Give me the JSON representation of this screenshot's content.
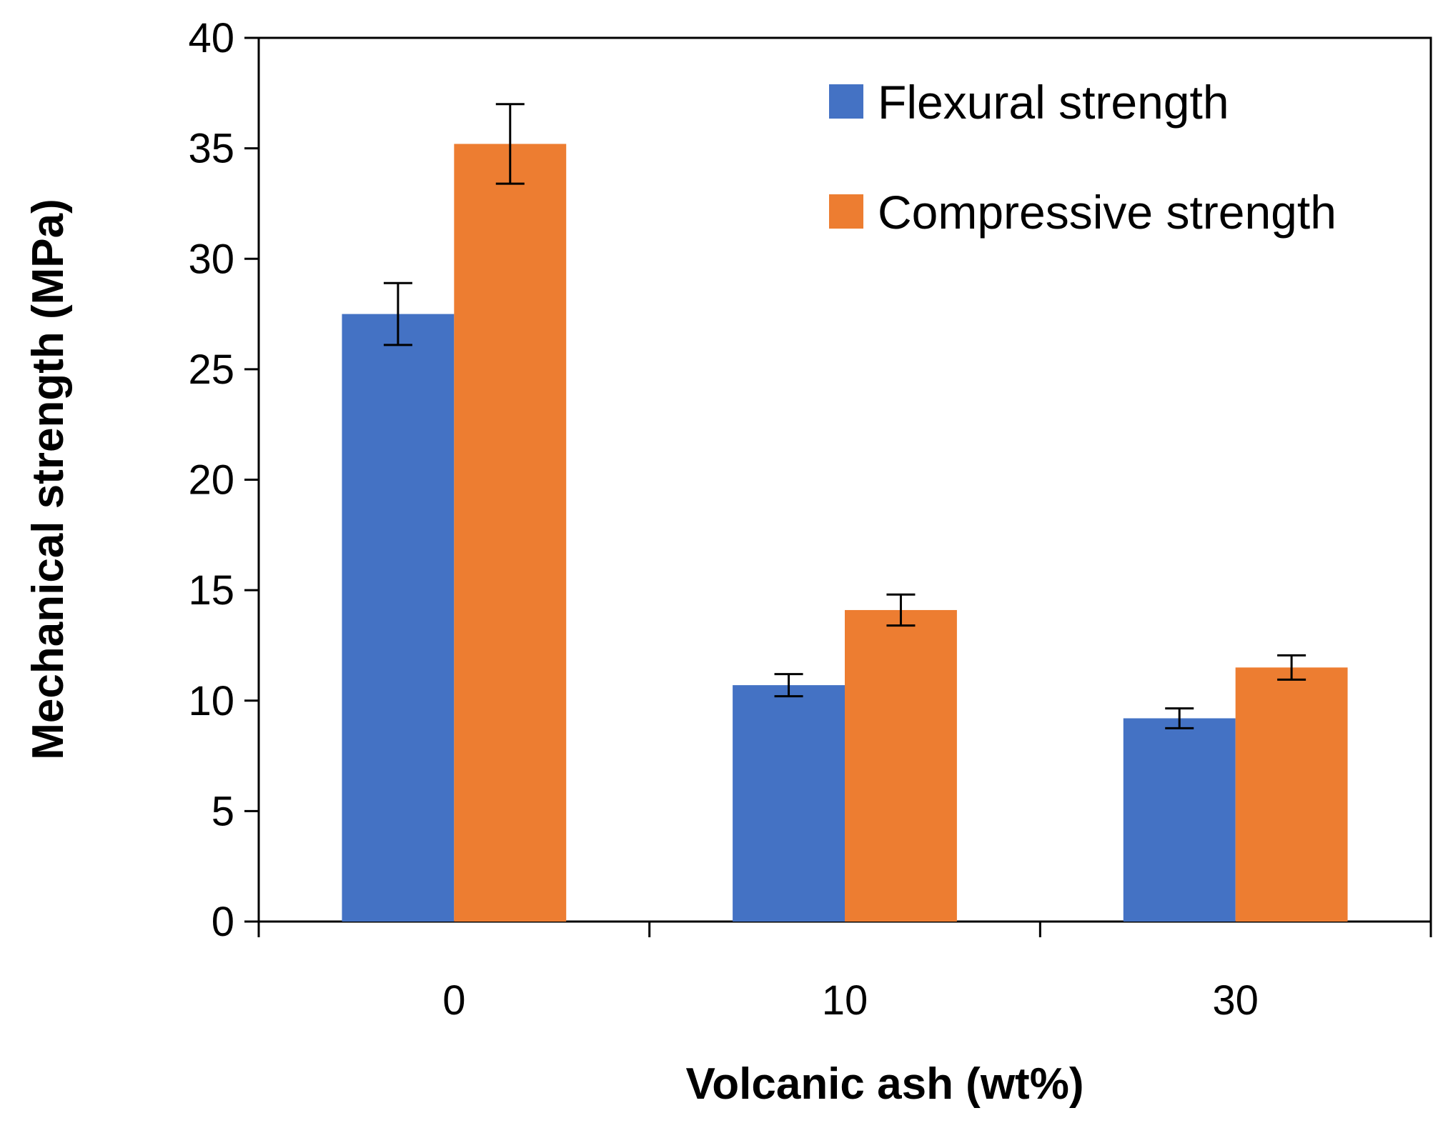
{
  "chart_data": {
    "type": "bar",
    "title": "",
    "xlabel": "Volcanic ash (wt%)",
    "ylabel": "Mechanical strength (MPa)",
    "ylim": [
      0,
      40
    ],
    "yticks": [
      "0",
      "5",
      "10",
      "15",
      "20",
      "25",
      "30",
      "35",
      "40"
    ],
    "categories": [
      "0",
      "10",
      "30"
    ],
    "series": [
      {
        "name": "Flexural strength",
        "color": "#4472C4",
        "values": [
          27.5,
          10.7,
          9.2
        ],
        "errors": [
          1.4,
          0.5,
          0.45
        ]
      },
      {
        "name": "Compressive strength",
        "color": "#ED7D31",
        "values": [
          35.2,
          14.1,
          11.5
        ],
        "errors": [
          1.8,
          0.7,
          0.55
        ]
      }
    ],
    "legend_position": "top-right",
    "grid": false
  }
}
